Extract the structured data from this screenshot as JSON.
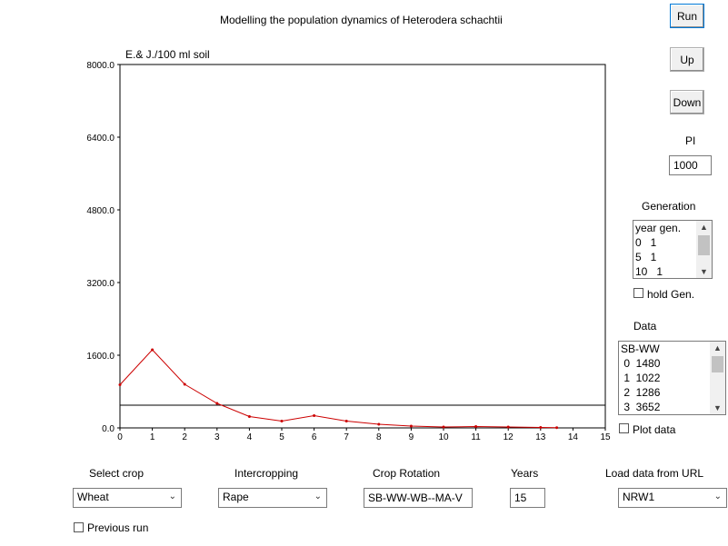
{
  "title": "Modelling the population dynamics of Heterodera schachtii",
  "buttons": {
    "run": "Run",
    "up": "Up",
    "down": "Down"
  },
  "pi": {
    "label": "PI",
    "value": "1000"
  },
  "generation": {
    "label": "Generation",
    "rows": [
      "year gen.",
      "0   1",
      "5   1",
      "10   1"
    ],
    "hold_label": "hold Gen."
  },
  "data_panel": {
    "label": "Data",
    "rows": [
      "SB-WW",
      " 0  1480",
      " 1  1022",
      " 2  1286",
      " 3  3652"
    ],
    "plot_label": "Plot data"
  },
  "controls": {
    "select_crop": {
      "label": "Select crop",
      "value": "Wheat"
    },
    "intercropping": {
      "label": "Intercropping",
      "value": "Rape"
    },
    "crop_rotation": {
      "label": "Crop Rotation",
      "value": "SB-WW-WB--MA-V"
    },
    "years": {
      "label": "Years",
      "value": "15"
    },
    "load_url": {
      "label": "Load data from URL",
      "value": "NRW1"
    },
    "previous_run": "Previous run"
  },
  "chart_data": {
    "type": "line",
    "ylabel": "E.& J./100 ml soil",
    "xlim": [
      0,
      15
    ],
    "ylim": [
      0,
      8000
    ],
    "x_ticks": [
      "0",
      "1",
      "2",
      "3",
      "4",
      "5",
      "6",
      "7",
      "8",
      "9",
      "10",
      "11",
      "12",
      "13",
      "14",
      "15"
    ],
    "y_ticks": [
      "0.0",
      "1600.0",
      "3200.0",
      "4800.0",
      "6400.0",
      "8000.0"
    ],
    "threshold": 500,
    "series": [
      {
        "color": "#cc0000",
        "x": [
          0,
          1,
          2,
          3,
          4,
          5,
          6,
          7,
          8,
          9,
          10,
          11,
          12,
          13,
          13.5
        ],
        "values": [
          950,
          1720,
          960,
          540,
          250,
          150,
          270,
          150,
          80,
          40,
          20,
          30,
          20,
          10,
          5
        ]
      }
    ],
    "threshold_color": "#000000"
  }
}
